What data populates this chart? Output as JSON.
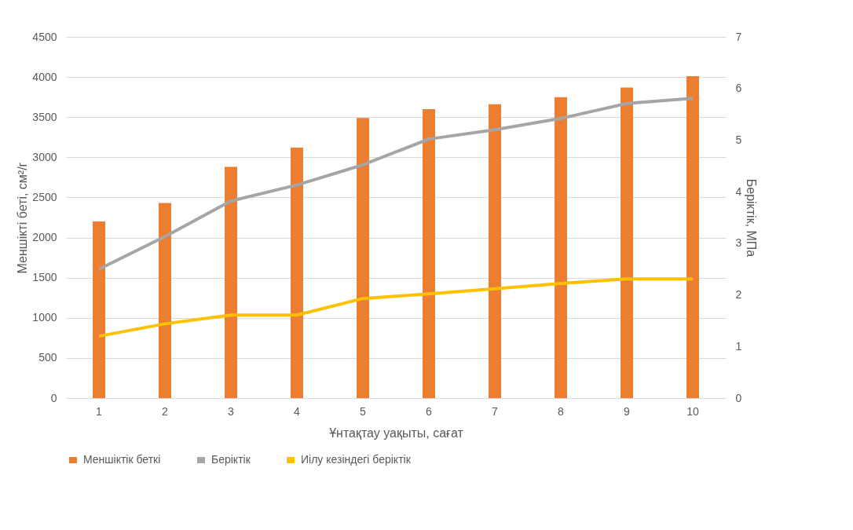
{
  "chart_data": {
    "type": "bar",
    "xlabel": "Ұнтақтау уақыты, сағат",
    "ylabel": "Меншікті беті, см²/г",
    "y2label": "Беріктік, МПа",
    "categories": [
      "1",
      "2",
      "3",
      "4",
      "5",
      "6",
      "7",
      "8",
      "9",
      "10"
    ],
    "series": [
      {
        "name": "Меншіктік беткі",
        "color": "#ed7d31",
        "values": [
          2200,
          2430,
          2880,
          3120,
          3490,
          3600,
          3660,
          3750,
          3870,
          4010
        ]
      },
      {
        "name": "Беріктік",
        "color": "#a5a5a5",
        "type": "line",
        "axis": "y2",
        "values": [
          2.5,
          3.13,
          3.82,
          4.13,
          4.52,
          5.02,
          5.2,
          5.42,
          5.71,
          5.81
        ]
      },
      {
        "name": "Иілу кезіндегі беріктік",
        "color": "#ffc000",
        "type": "line",
        "axis": "y2",
        "values": [
          1.2,
          1.44,
          1.61,
          1.61,
          1.93,
          2.02,
          2.12,
          2.22,
          2.31,
          2.31
        ]
      }
    ],
    "ylim": [
      0,
      4500
    ],
    "yticks": [
      0,
      500,
      1000,
      1500,
      2000,
      2500,
      3000,
      3500,
      4000,
      4500
    ],
    "y2lim": [
      0,
      7
    ],
    "y2ticks": [
      0,
      1,
      2,
      3,
      4,
      5,
      6,
      7
    ],
    "grid": "y",
    "legend": "bottom"
  }
}
